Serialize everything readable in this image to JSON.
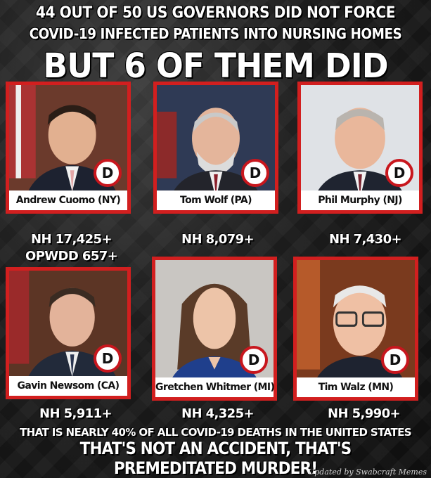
{
  "headline": {
    "line1": "44 OUT OF 50 US GOVERNORS DID NOT FORCE",
    "line2": "COVID-19 INFECTED PATIENTS INTO NURSING HOMES",
    "line3": "BUT 6 OF THEM DID"
  },
  "governors": [
    {
      "name": "Andrew Cuomo (NY)",
      "party": "D",
      "stat": "NH 17,425+",
      "extra": "OPWDD 657+"
    },
    {
      "name": "Tom Wolf  (PA)",
      "party": "D",
      "stat": "NH 8,079+"
    },
    {
      "name": "Phil Murphy (NJ)",
      "party": "D",
      "stat": "NH 7,430+"
    },
    {
      "name": "Gavin Newsom (CA)",
      "party": "D",
      "stat": "NH 5,911+"
    },
    {
      "name": "Gretchen Whitmer (MI)",
      "party": "D",
      "stat": "NH 4,325+"
    },
    {
      "name": "Tim Walz (MN)",
      "party": "D",
      "stat": "NH 5,990+"
    }
  ],
  "footer": {
    "line1": "THAT IS NEARLY 40% OF ALL COVID-19 DEATHS IN THE UNITED STATES",
    "line2": "THAT'S NOT AN ACCIDENT, THAT'S PREMEDITATED MURDER!"
  },
  "credit": "Updated by Swabcraft Memes",
  "colors": {
    "frame_red": "#d21f1f",
    "badge_red": "#c8161d",
    "text": "#ffffff"
  }
}
